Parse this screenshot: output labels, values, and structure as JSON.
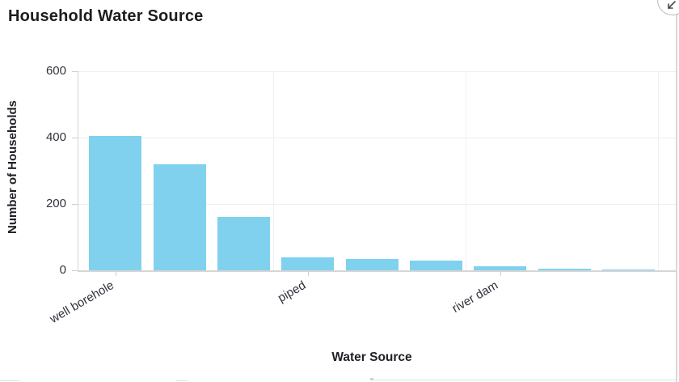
{
  "panel": {
    "collapse_icon": "collapse-arrows-icon"
  },
  "chart_data": {
    "type": "bar",
    "title": "Household Water Source",
    "xlabel": "Water Source",
    "ylabel": "Number of Households",
    "categories": [
      "well borehole",
      "",
      "",
      "piped",
      "",
      "",
      "river dam",
      "",
      ""
    ],
    "values": [
      405,
      320,
      160,
      40,
      34,
      30,
      11,
      6,
      3
    ],
    "visible_x_tick_labels": [
      {
        "label": "well borehole",
        "bar_index": 0
      },
      {
        "label": "piped",
        "bar_index": 3
      },
      {
        "label": "river dam",
        "bar_index": 6
      }
    ],
    "yticks": [
      0,
      200,
      400,
      600
    ],
    "ylim": [
      0,
      600
    ],
    "grid": true,
    "legend": "none",
    "bar_color": "#7fd1ee",
    "grid_color": "#efefef",
    "axis_color": "#d6d6d6",
    "text_color": "#32333c"
  }
}
